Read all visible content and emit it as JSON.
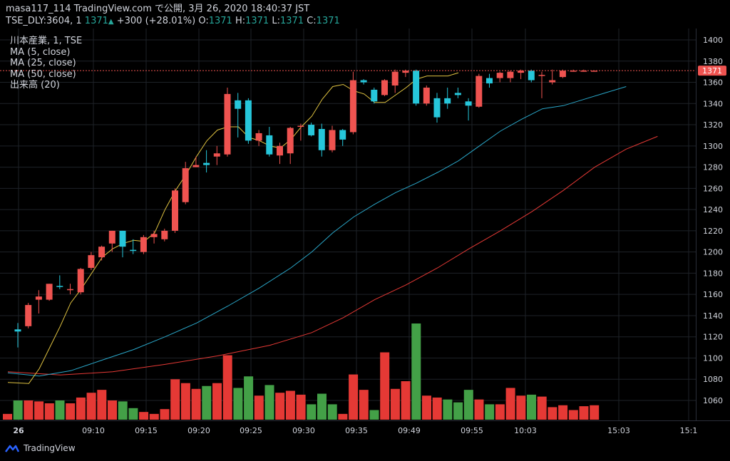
{
  "header": {
    "line1": "masa117_114 TradingView.com で公開, 3月 26, 2020 18:40:37 JST",
    "symbol": "TSE_DLY:3604, 1",
    "last": "1371",
    "change": "+300 (+28.01%)",
    "o_label": "O:",
    "o_val": "1371",
    "h_label": "H:",
    "h_val": "1371",
    "l_label": "L:",
    "l_val": "1371",
    "c_label": "C:",
    "c_val": "1371"
  },
  "legend": {
    "title": "川本産業, 1, TSE",
    "ma5": "MA (5, close)",
    "ma25": "MA (25, close)",
    "ma50": "MA (50, close)",
    "vol": "出来高 (20)"
  },
  "price_badge": "1371",
  "brand": "TradingView",
  "colors": {
    "up": "#ef5350",
    "down": "#26c6da",
    "ma5": "#e0c341",
    "ma25": "#2aa7c9",
    "ma50": "#e53935",
    "vol_up": "#e53935",
    "vol_down": "#43a047",
    "grid": "#1e2228",
    "axis_text": "#d1d4dc"
  },
  "chart_data": {
    "type": "candlestick",
    "x_tick_labels": [
      "26",
      "09:10",
      "09:15",
      "09:20",
      "09:25",
      "09:30",
      "09:35",
      "09:49",
      "09:55",
      "10:03",
      "15:03",
      "15:1"
    ],
    "y_ticks": [
      1060,
      1080,
      1100,
      1120,
      1140,
      1160,
      1180,
      1200,
      1220,
      1240,
      1260,
      1280,
      1300,
      1320,
      1340,
      1360,
      1380,
      1400
    ],
    "ylim": [
      1045,
      1405
    ],
    "last_price": 1371,
    "candles": [
      {
        "o": 1127,
        "h": 1133,
        "l": 1110,
        "c": 1125
      },
      {
        "o": 1130,
        "h": 1152,
        "l": 1128,
        "c": 1150
      },
      {
        "o": 1155,
        "h": 1164,
        "l": 1142,
        "c": 1158
      },
      {
        "o": 1155,
        "h": 1170,
        "l": 1154,
        "c": 1170
      },
      {
        "o": 1168,
        "h": 1178,
        "l": 1165,
        "c": 1167
      },
      {
        "o": 1165,
        "h": 1170,
        "l": 1160,
        "c": 1165
      },
      {
        "o": 1162,
        "h": 1185,
        "l": 1160,
        "c": 1184
      },
      {
        "o": 1185,
        "h": 1200,
        "l": 1183,
        "c": 1197
      },
      {
        "o": 1195,
        "h": 1206,
        "l": 1192,
        "c": 1205
      },
      {
        "o": 1208,
        "h": 1220,
        "l": 1200,
        "c": 1220
      },
      {
        "o": 1220,
        "h": 1220,
        "l": 1195,
        "c": 1205
      },
      {
        "o": 1202,
        "h": 1212,
        "l": 1198,
        "c": 1201
      },
      {
        "o": 1200,
        "h": 1216,
        "l": 1198,
        "c": 1214
      },
      {
        "o": 1214,
        "h": 1220,
        "l": 1208,
        "c": 1217
      },
      {
        "o": 1212,
        "h": 1222,
        "l": 1210,
        "c": 1220
      },
      {
        "o": 1220,
        "h": 1260,
        "l": 1218,
        "c": 1258
      },
      {
        "o": 1247,
        "h": 1285,
        "l": 1245,
        "c": 1279
      },
      {
        "o": 1280,
        "h": 1290,
        "l": 1280,
        "c": 1282
      },
      {
        "o": 1284,
        "h": 1296,
        "l": 1275,
        "c": 1282
      },
      {
        "o": 1290,
        "h": 1300,
        "l": 1282,
        "c": 1293
      },
      {
        "o": 1292,
        "h": 1355,
        "l": 1290,
        "c": 1349
      },
      {
        "o": 1343,
        "h": 1350,
        "l": 1308,
        "c": 1335
      },
      {
        "o": 1343,
        "h": 1345,
        "l": 1302,
        "c": 1305
      },
      {
        "o": 1305,
        "h": 1315,
        "l": 1300,
        "c": 1312
      },
      {
        "o": 1310,
        "h": 1318,
        "l": 1290,
        "c": 1292
      },
      {
        "o": 1291,
        "h": 1303,
        "l": 1283,
        "c": 1300
      },
      {
        "o": 1293,
        "h": 1318,
        "l": 1283,
        "c": 1317
      },
      {
        "o": 1318,
        "h": 1321,
        "l": 1305,
        "c": 1319
      },
      {
        "o": 1320,
        "h": 1322,
        "l": 1309,
        "c": 1310
      },
      {
        "o": 1316,
        "h": 1321,
        "l": 1290,
        "c": 1296
      },
      {
        "o": 1296,
        "h": 1319,
        "l": 1294,
        "c": 1315
      },
      {
        "o": 1315,
        "h": 1316,
        "l": 1300,
        "c": 1306
      },
      {
        "o": 1313,
        "h": 1370,
        "l": 1311,
        "c": 1362
      },
      {
        "o": 1362,
        "h": 1363,
        "l": 1358,
        "c": 1360
      },
      {
        "o": 1353,
        "h": 1355,
        "l": 1340,
        "c": 1342
      },
      {
        "o": 1348,
        "h": 1363,
        "l": 1347,
        "c": 1362
      },
      {
        "o": 1357,
        "h": 1372,
        "l": 1350,
        "c": 1370
      },
      {
        "o": 1369,
        "h": 1372,
        "l": 1365,
        "c": 1371
      },
      {
        "o": 1371,
        "h": 1372,
        "l": 1338,
        "c": 1340
      },
      {
        "o": 1340,
        "h": 1357,
        "l": 1338,
        "c": 1355
      },
      {
        "o": 1345,
        "h": 1350,
        "l": 1322,
        "c": 1327
      },
      {
        "o": 1345,
        "h": 1355,
        "l": 1335,
        "c": 1340
      },
      {
        "o": 1350,
        "h": 1355,
        "l": 1345,
        "c": 1348
      },
      {
        "o": 1342,
        "h": 1345,
        "l": 1324,
        "c": 1338
      },
      {
        "o": 1337,
        "h": 1368,
        "l": 1336,
        "c": 1366
      },
      {
        "o": 1364,
        "h": 1368,
        "l": 1355,
        "c": 1359
      },
      {
        "o": 1364,
        "h": 1370,
        "l": 1360,
        "c": 1369
      },
      {
        "o": 1364,
        "h": 1371,
        "l": 1360,
        "c": 1370
      },
      {
        "o": 1369,
        "h": 1372,
        "l": 1363,
        "c": 1371
      },
      {
        "o": 1371,
        "h": 1372,
        "l": 1360,
        "c": 1362
      },
      {
        "o": 1366,
        "h": 1370,
        "l": 1345,
        "c": 1367
      },
      {
        "o": 1360,
        "h": 1372,
        "l": 1358,
        "c": 1362
      },
      {
        "o": 1365,
        "h": 1372,
        "l": 1364,
        "c": 1371
      },
      {
        "o": 1371,
        "h": 1372,
        "l": 1370,
        "c": 1371
      },
      {
        "o": 1371,
        "h": 1372,
        "l": 1370,
        "c": 1371
      },
      {
        "o": 1371,
        "h": 1371,
        "l": 1371,
        "c": 1371
      }
    ],
    "volume_max": 100,
    "volumes": [
      {
        "v": 6,
        "up": true
      },
      {
        "v": 20,
        "up": false
      },
      {
        "v": 20,
        "up": true
      },
      {
        "v": 19,
        "up": true
      },
      {
        "v": 17,
        "up": true
      },
      {
        "v": 20,
        "up": false
      },
      {
        "v": 17,
        "up": true
      },
      {
        "v": 23,
        "up": true
      },
      {
        "v": 28,
        "up": true
      },
      {
        "v": 31,
        "up": true
      },
      {
        "v": 20,
        "up": true
      },
      {
        "v": 19,
        "up": false
      },
      {
        "v": 12,
        "up": false
      },
      {
        "v": 8,
        "up": true
      },
      {
        "v": 6,
        "up": true
      },
      {
        "v": 11,
        "up": true
      },
      {
        "v": 42,
        "up": true
      },
      {
        "v": 38,
        "up": true
      },
      {
        "v": 32,
        "up": true
      },
      {
        "v": 35,
        "up": false
      },
      {
        "v": 38,
        "up": true
      },
      {
        "v": 67,
        "up": true
      },
      {
        "v": 33,
        "up": false
      },
      {
        "v": 45,
        "up": false
      },
      {
        "v": 25,
        "up": true
      },
      {
        "v": 36,
        "up": false
      },
      {
        "v": 28,
        "up": true
      },
      {
        "v": 30,
        "up": true
      },
      {
        "v": 26,
        "up": true
      },
      {
        "v": 16,
        "up": false
      },
      {
        "v": 27,
        "up": false
      },
      {
        "v": 16,
        "up": false
      },
      {
        "v": 6,
        "up": true
      },
      {
        "v": 47,
        "up": true
      },
      {
        "v": 31,
        "up": true
      },
      {
        "v": 10,
        "up": false
      },
      {
        "v": 70,
        "up": true
      },
      {
        "v": 32,
        "up": true
      },
      {
        "v": 40,
        "up": true
      },
      {
        "v": 100,
        "up": false
      },
      {
        "v": 25,
        "up": true
      },
      {
        "v": 23,
        "up": true
      },
      {
        "v": 21,
        "up": false
      },
      {
        "v": 18,
        "up": false
      },
      {
        "v": 31,
        "up": false
      },
      {
        "v": 21,
        "up": true
      },
      {
        "v": 16,
        "up": false
      },
      {
        "v": 16,
        "up": true
      },
      {
        "v": 33,
        "up": true
      },
      {
        "v": 25,
        "up": true
      },
      {
        "v": 26,
        "up": false
      },
      {
        "v": 24,
        "up": true
      },
      {
        "v": 13,
        "up": true
      },
      {
        "v": 15,
        "up": true
      },
      {
        "v": 10,
        "up": true
      },
      {
        "v": 14,
        "up": true
      },
      {
        "v": 15,
        "up": true
      }
    ],
    "ma5": [
      [
        0,
        1077
      ],
      [
        4,
        1076
      ],
      [
        6,
        1090
      ],
      [
        8,
        1110
      ],
      [
        10,
        1130
      ],
      [
        12,
        1152
      ],
      [
        14,
        1165
      ],
      [
        16,
        1180
      ],
      [
        18,
        1195
      ],
      [
        20,
        1203
      ],
      [
        22,
        1208
      ],
      [
        24,
        1211
      ],
      [
        26,
        1210
      ],
      [
        28,
        1218
      ],
      [
        30,
        1240
      ],
      [
        32,
        1258
      ],
      [
        34,
        1273
      ],
      [
        36,
        1290
      ],
      [
        38,
        1305
      ],
      [
        40,
        1315
      ],
      [
        42,
        1318
      ],
      [
        44,
        1318
      ],
      [
        46,
        1308
      ],
      [
        48,
        1305
      ],
      [
        50,
        1300
      ],
      [
        52,
        1298
      ],
      [
        54,
        1306
      ],
      [
        56,
        1318
      ],
      [
        58,
        1328
      ],
      [
        60,
        1344
      ],
      [
        62,
        1356
      ],
      [
        64,
        1358
      ],
      [
        66,
        1352
      ],
      [
        68,
        1349
      ],
      [
        70,
        1341
      ],
      [
        72,
        1341
      ],
      [
        74,
        1348
      ],
      [
        76,
        1355
      ],
      [
        78,
        1363
      ],
      [
        80,
        1366
      ],
      [
        82,
        1366
      ],
      [
        84,
        1366
      ],
      [
        86,
        1369
      ]
    ],
    "ma25": [
      [
        0,
        1086
      ],
      [
        6,
        1083
      ],
      [
        12,
        1088
      ],
      [
        18,
        1098
      ],
      [
        24,
        1108
      ],
      [
        30,
        1120
      ],
      [
        36,
        1133
      ],
      [
        42,
        1149
      ],
      [
        48,
        1166
      ],
      [
        54,
        1185
      ],
      [
        58,
        1200
      ],
      [
        62,
        1218
      ],
      [
        66,
        1233
      ],
      [
        70,
        1245
      ],
      [
        74,
        1256
      ],
      [
        78,
        1265
      ],
      [
        82,
        1275
      ],
      [
        86,
        1286
      ],
      [
        90,
        1300
      ],
      [
        94,
        1314
      ],
      [
        98,
        1325
      ],
      [
        102,
        1335
      ],
      [
        106,
        1338
      ],
      [
        110,
        1344
      ],
      [
        114,
        1350
      ],
      [
        118,
        1356
      ]
    ],
    "ma50": [
      [
        0,
        1087
      ],
      [
        10,
        1084
      ],
      [
        20,
        1087
      ],
      [
        30,
        1094
      ],
      [
        40,
        1102
      ],
      [
        50,
        1112
      ],
      [
        58,
        1124
      ],
      [
        64,
        1138
      ],
      [
        70,
        1155
      ],
      [
        76,
        1169
      ],
      [
        82,
        1185
      ],
      [
        88,
        1203
      ],
      [
        94,
        1220
      ],
      [
        100,
        1238
      ],
      [
        106,
        1258
      ],
      [
        112,
        1280
      ],
      [
        118,
        1297
      ],
      [
        124,
        1309
      ]
    ]
  }
}
